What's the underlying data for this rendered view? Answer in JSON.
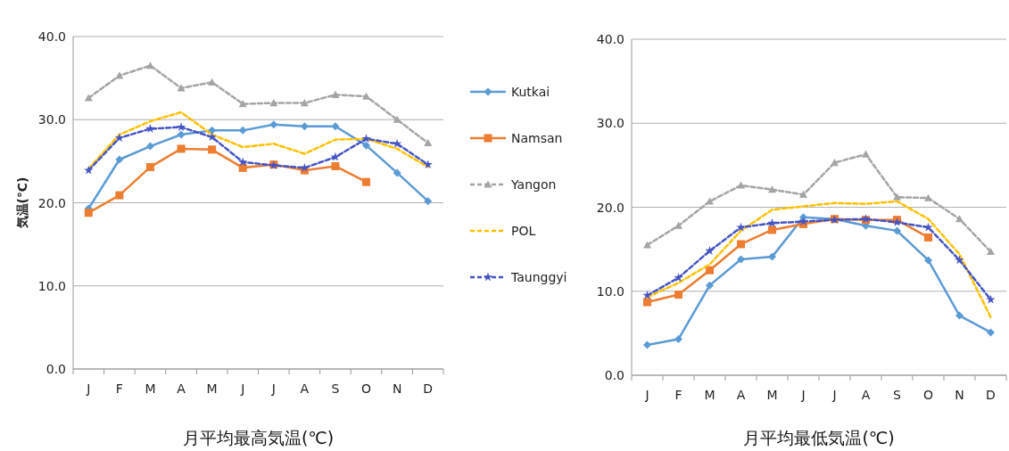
{
  "chart_data": [
    {
      "type": "line",
      "title": "月平均最高気温(℃)",
      "ylabel": "気温(℃)",
      "categories": [
        "J",
        "F",
        "M",
        "A",
        "M",
        "J",
        "J",
        "A",
        "S",
        "O",
        "N",
        "D"
      ],
      "ylim": [
        0,
        40
      ],
      "yticks": [
        {
          "value": 0,
          "label": "0.0"
        },
        {
          "value": 10,
          "label": "10.0"
        },
        {
          "value": 20,
          "label": "20.0"
        },
        {
          "value": 30,
          "label": "30.0"
        },
        {
          "value": 40,
          "label": "40.0"
        }
      ],
      "grid": "y",
      "legend": "right",
      "series": [
        {
          "name": "Kutkai",
          "color": "#5b9bd5",
          "marker": "diamond",
          "line_style": "solid",
          "values": [
            19.3,
            25.2,
            26.8,
            28.2,
            28.7,
            28.7,
            29.4,
            29.2,
            29.2,
            26.9,
            23.6,
            20.2
          ]
        },
        {
          "name": "Namsan",
          "color": "#ed7d31",
          "marker": "square",
          "line_style": "solid",
          "values": [
            18.8,
            20.9,
            24.3,
            26.5,
            26.4,
            24.2,
            24.6,
            23.9,
            24.4,
            22.5,
            null,
            null
          ]
        },
        {
          "name": "Yangon",
          "color": "#a5a5a5",
          "marker": "triangle",
          "line_style": "dashed",
          "values": [
            32.6,
            35.3,
            36.5,
            33.8,
            34.5,
            31.9,
            32.0,
            32.0,
            33.0,
            32.8,
            30.0,
            27.2
          ]
        },
        {
          "name": "POL",
          "color": "#ffc000",
          "marker": "none",
          "line_style": "dashed",
          "values": [
            24.1,
            28.2,
            29.8,
            30.9,
            28.2,
            26.7,
            27.1,
            25.9,
            27.6,
            27.7,
            26.5,
            24.3
          ]
        },
        {
          "name": "Taunggyi",
          "color": "#4454c4",
          "marker": "star",
          "line_style": "dashed",
          "values": [
            23.9,
            27.8,
            28.9,
            29.1,
            27.9,
            24.9,
            24.5,
            24.2,
            25.5,
            27.7,
            27.1,
            24.6
          ]
        }
      ]
    },
    {
      "type": "line",
      "title": "月平均最低気温(℃)",
      "categories": [
        "J",
        "F",
        "M",
        "A",
        "M",
        "J",
        "J",
        "A",
        "S",
        "O",
        "N",
        "D"
      ],
      "ylim": [
        0,
        40
      ],
      "yticks": [
        {
          "value": 0,
          "label": "0.0"
        },
        {
          "value": 10,
          "label": "10.0"
        },
        {
          "value": 20,
          "label": "20.0"
        },
        {
          "value": 30,
          "label": "30.0"
        },
        {
          "value": 40,
          "label": "40.0"
        }
      ],
      "grid": "y",
      "series": [
        {
          "color": "#5b9bd5",
          "marker": "diamond",
          "line_style": "solid",
          "values": [
            3.6,
            4.3,
            10.7,
            13.8,
            14.1,
            18.8,
            18.6,
            17.8,
            17.2,
            13.7,
            7.1,
            5.1
          ]
        },
        {
          "color": "#ed7d31",
          "marker": "square",
          "line_style": "solid",
          "values": [
            8.7,
            9.6,
            12.5,
            15.6,
            17.3,
            18.0,
            18.6,
            18.5,
            18.5,
            16.4,
            null,
            null
          ]
        },
        {
          "color": "#a5a5a5",
          "marker": "triangle",
          "line_style": "dashed",
          "values": [
            15.5,
            17.8,
            20.7,
            22.6,
            22.1,
            21.5,
            25.3,
            26.3,
            21.2,
            21.1,
            18.6,
            14.7
          ]
        },
        {
          "color": "#ffc000",
          "marker": "none",
          "line_style": "dashed",
          "values": [
            9.3,
            11.0,
            13.2,
            17.2,
            19.7,
            20.1,
            20.5,
            20.4,
            20.7,
            18.6,
            14.4,
            6.9
          ]
        },
        {
          "color": "#4454c4",
          "marker": "star",
          "line_style": "dashed",
          "values": [
            9.5,
            11.6,
            14.8,
            17.6,
            18.1,
            18.3,
            18.5,
            18.6,
            18.2,
            17.6,
            13.7,
            9.0
          ]
        }
      ]
    }
  ]
}
